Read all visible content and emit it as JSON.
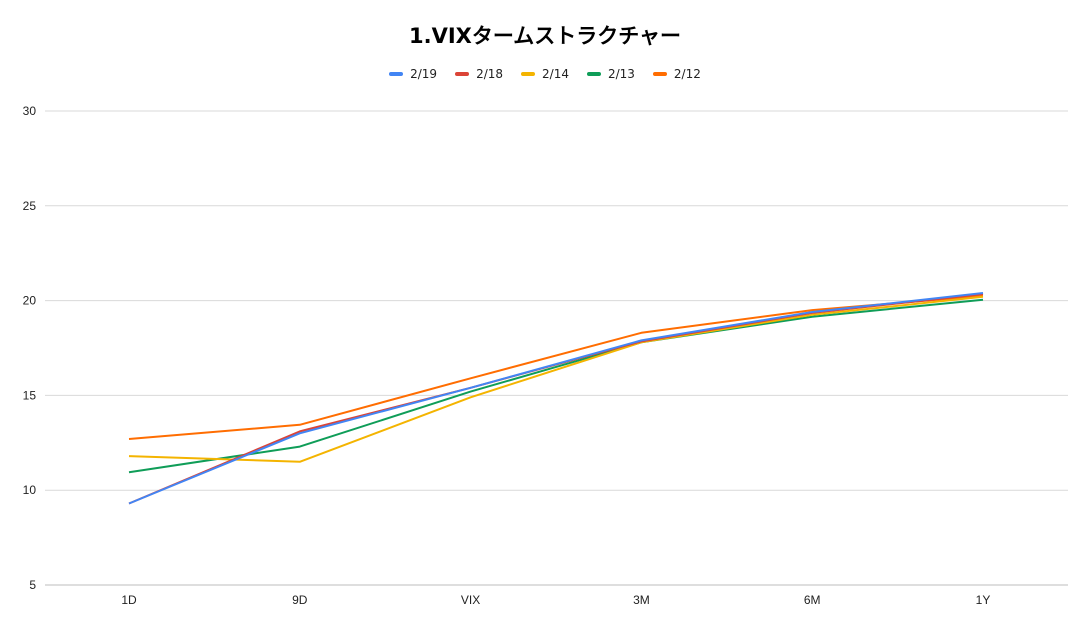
{
  "chart_data": {
    "type": "line",
    "title": "1.VIXタームストラクチャー",
    "xlabel": "",
    "ylabel": "",
    "categories": [
      "1D",
      "9D",
      "VIX",
      "3M",
      "6M",
      "1Y"
    ],
    "ylim": [
      5,
      30
    ],
    "yticks": [
      "5",
      "10",
      "15",
      "20",
      "25",
      "30"
    ],
    "grid": true,
    "legend_position": "top",
    "series": [
      {
        "name": "2/19",
        "color": "#4285f4",
        "values": [
          9.3,
          13.0,
          15.4,
          17.9,
          19.4,
          20.4
        ]
      },
      {
        "name": "2/18",
        "color": "#db4437",
        "values": [
          9.3,
          13.1,
          15.4,
          17.85,
          19.35,
          20.35
        ]
      },
      {
        "name": "2/14",
        "color": "#f4b400",
        "values": [
          11.8,
          11.5,
          14.9,
          17.8,
          19.25,
          20.2
        ]
      },
      {
        "name": "2/13",
        "color": "#0f9d58",
        "values": [
          10.95,
          12.3,
          15.2,
          17.8,
          19.15,
          20.05
        ]
      },
      {
        "name": "2/12",
        "color": "#ff6d01",
        "values": [
          12.7,
          13.45,
          15.9,
          18.3,
          19.5,
          20.25
        ]
      }
    ]
  }
}
